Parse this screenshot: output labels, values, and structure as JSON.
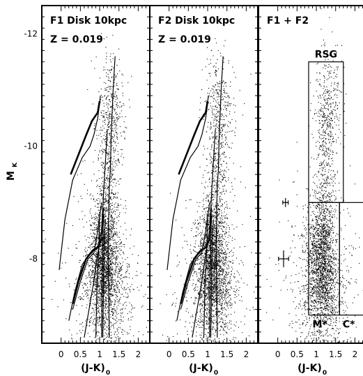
{
  "chart_data": {
    "type": "scatter",
    "y_label": "M",
    "y_label_sub": "K",
    "y_range": [
      -12.5,
      -6.5
    ],
    "y_inverted": true,
    "y_ticks": [
      "-12",
      "-10",
      "-8"
    ],
    "y_tick_values": [
      -12,
      -10,
      -8
    ],
    "x_range": [
      -0.5,
      2.3
    ],
    "x_ticks": [
      "0",
      "0.5",
      "1",
      "1.5",
      "2"
    ],
    "x_tick_values": [
      0,
      0.5,
      1,
      1.5,
      2
    ],
    "panels": [
      {
        "title": "F1 Disk 10kpc",
        "subtitle": "Z = 0.019",
        "x_label": "(J-K)",
        "x_label_sub": "0",
        "isochrones": [
          [
            [
              1.25,
              -6.6
            ],
            [
              1.23,
              -7.6
            ],
            [
              1.22,
              -8.1
            ],
            [
              1.24,
              -9.0
            ],
            [
              1.25,
              -9.3
            ],
            [
              1.28,
              -9.6
            ],
            [
              1.3,
              -10.2
            ],
            [
              1.35,
              -11.0
            ],
            [
              1.4,
              -11.6
            ]
          ],
          [
            [
              -0.05,
              -7.8
            ],
            [
              0.1,
              -8.7
            ],
            [
              0.3,
              -9.4
            ],
            [
              0.55,
              -9.8
            ],
            [
              0.75,
              -10.0
            ],
            [
              0.85,
              -10.2
            ],
            [
              0.95,
              -10.5
            ],
            [
              1.02,
              -10.9
            ]
          ],
          [
            [
              0.2,
              -6.9
            ],
            [
              0.35,
              -7.4
            ],
            [
              0.55,
              -7.9
            ],
            [
              0.75,
              -8.1
            ],
            [
              0.95,
              -8.2
            ],
            [
              1.05,
              -8.5
            ],
            [
              1.12,
              -9.4
            ],
            [
              1.2,
              -10.3
            ]
          ],
          [
            [
              0.3,
              -7.1
            ],
            [
              0.5,
              -7.6
            ],
            [
              0.7,
              -8.0
            ],
            [
              0.85,
              -8.1
            ],
            [
              0.95,
              -8.5
            ],
            [
              1.05,
              -9.0
            ]
          ],
          [
            [
              0.6,
              -6.6
            ],
            [
              0.7,
              -7.0
            ],
            [
              0.85,
              -7.6
            ],
            [
              0.95,
              -8.1
            ],
            [
              1.05,
              -8.4
            ],
            [
              1.1,
              -8.9
            ]
          ],
          [
            [
              0.9,
              -6.6
            ],
            [
              0.93,
              -7.5
            ],
            [
              0.98,
              -8.2
            ],
            [
              1.0,
              -8.8
            ]
          ],
          [
            [
              1.05,
              -6.6
            ],
            [
              1.06,
              -7.5
            ],
            [
              1.08,
              -8.3
            ],
            [
              1.1,
              -8.8
            ]
          ],
          [
            [
              1.08,
              -6.6
            ],
            [
              1.1,
              -7.6
            ],
            [
              1.12,
              -8.4
            ],
            [
              1.15,
              -8.7
            ]
          ]
        ],
        "agb_tracks": [
          [
            [
              0.25,
              -9.5
            ],
            [
              0.45,
              -9.85
            ],
            [
              0.65,
              -10.2
            ],
            [
              0.8,
              -10.45
            ],
            [
              0.95,
              -10.6
            ],
            [
              1.0,
              -10.8
            ]
          ],
          [
            [
              0.3,
              -7.2
            ],
            [
              0.45,
              -7.6
            ],
            [
              0.65,
              -8.0
            ],
            [
              0.82,
              -8.15
            ],
            [
              0.95,
              -8.2
            ],
            [
              1.05,
              -8.35
            ]
          ]
        ]
      },
      {
        "title": "F2 Disk 10kpc",
        "subtitle": "Z = 0.019",
        "x_label": "(J-K)",
        "x_label_sub": "0",
        "isochrones": [
          [
            [
              1.25,
              -6.6
            ],
            [
              1.23,
              -7.6
            ],
            [
              1.22,
              -8.1
            ],
            [
              1.24,
              -9.0
            ],
            [
              1.25,
              -9.3
            ],
            [
              1.28,
              -9.6
            ],
            [
              1.3,
              -10.2
            ],
            [
              1.35,
              -11.0
            ],
            [
              1.4,
              -11.6
            ]
          ],
          [
            [
              -0.05,
              -7.8
            ],
            [
              0.1,
              -8.7
            ],
            [
              0.3,
              -9.4
            ],
            [
              0.55,
              -9.8
            ],
            [
              0.75,
              -10.0
            ],
            [
              0.85,
              -10.2
            ],
            [
              0.95,
              -10.5
            ],
            [
              1.02,
              -10.9
            ]
          ],
          [
            [
              0.2,
              -6.9
            ],
            [
              0.35,
              -7.4
            ],
            [
              0.55,
              -7.9
            ],
            [
              0.75,
              -8.1
            ],
            [
              0.95,
              -8.2
            ],
            [
              1.05,
              -8.5
            ],
            [
              1.12,
              -9.4
            ],
            [
              1.2,
              -10.3
            ]
          ],
          [
            [
              0.3,
              -7.1
            ],
            [
              0.5,
              -7.6
            ],
            [
              0.7,
              -8.0
            ],
            [
              0.85,
              -8.1
            ],
            [
              0.95,
              -8.5
            ],
            [
              1.05,
              -9.0
            ]
          ],
          [
            [
              0.6,
              -6.6
            ],
            [
              0.7,
              -7.0
            ],
            [
              0.85,
              -7.6
            ],
            [
              0.95,
              -8.1
            ],
            [
              1.05,
              -8.4
            ],
            [
              1.1,
              -8.9
            ]
          ],
          [
            [
              0.9,
              -6.6
            ],
            [
              0.93,
              -7.5
            ],
            [
              0.98,
              -8.2
            ],
            [
              1.0,
              -8.8
            ]
          ],
          [
            [
              1.05,
              -6.6
            ],
            [
              1.06,
              -7.5
            ],
            [
              1.08,
              -8.3
            ],
            [
              1.1,
              -8.8
            ]
          ],
          [
            [
              1.08,
              -6.6
            ],
            [
              1.1,
              -7.6
            ],
            [
              1.12,
              -8.4
            ],
            [
              1.15,
              -8.7
            ]
          ]
        ],
        "agb_tracks": [
          [
            [
              0.25,
              -9.5
            ],
            [
              0.45,
              -9.85
            ],
            [
              0.65,
              -10.2
            ],
            [
              0.8,
              -10.45
            ],
            [
              0.95,
              -10.6
            ],
            [
              1.0,
              -10.8
            ]
          ],
          [
            [
              0.3,
              -7.2
            ],
            [
              0.45,
              -7.6
            ],
            [
              0.65,
              -8.0
            ],
            [
              0.82,
              -8.15
            ],
            [
              0.95,
              -8.2
            ],
            [
              1.05,
              -8.35
            ]
          ]
        ]
      },
      {
        "title": "F1 + F2",
        "x_label": "(J-K)",
        "x_label_sub": "0",
        "boxes": [
          {
            "label": "RSG",
            "x": [
              0.8,
              1.7
            ],
            "y": [
              -11.5,
              -9.0
            ]
          },
          {
            "label": "M*",
            "x": [
              0.8,
              1.6
            ],
            "y": [
              -9.0,
              -7.0
            ]
          },
          {
            "label": "C*",
            "x": [
              1.6,
              2.3
            ],
            "y": [
              -9.0,
              -7.0
            ]
          }
        ],
        "error_bars": [
          {
            "x": 0.2,
            "y": -9.0,
            "dx": 0.07,
            "dy": 0.08
          },
          {
            "x": 0.15,
            "y": -8.0,
            "dx": 0.13,
            "dy": 0.15
          }
        ]
      }
    ],
    "scatter_clouds": [
      {
        "x_mean": 1.12,
        "x_sd": 0.18,
        "y_mean": -8.05,
        "y_sd": 0.55,
        "share": 0.45
      },
      {
        "x_mean": 1.15,
        "x_sd": 0.3,
        "y_mean": -7.4,
        "y_sd": 0.5,
        "share": 0.22
      },
      {
        "x_mean": 1.25,
        "x_sd": 0.14,
        "y_mean": -9.6,
        "y_sd": 0.9,
        "share": 0.13
      },
      {
        "x_mean": 1.1,
        "x_sd": 0.55,
        "y_mean": -7.5,
        "y_sd": 0.9,
        "share": 0.12
      },
      {
        "x_mean": 1.3,
        "x_sd": 0.2,
        "y_mean": -10.7,
        "y_sd": 0.5,
        "share": 0.08
      }
    ],
    "points_per_panel": 3200
  }
}
